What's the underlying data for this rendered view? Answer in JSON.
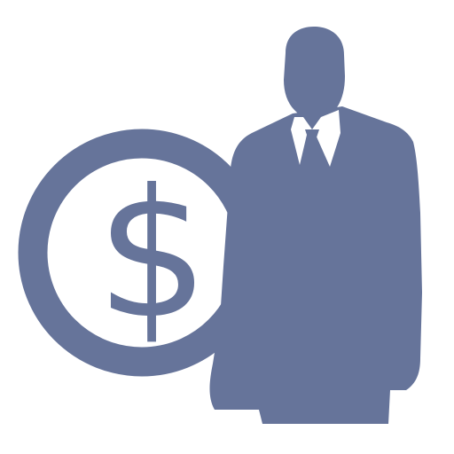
{
  "icon": {
    "name": "businessman-money-icon",
    "coin_symbol": "$",
    "colors": {
      "figure": "#66749A",
      "shirt": "#FFFFFF",
      "background": "#FFFFFF"
    }
  }
}
